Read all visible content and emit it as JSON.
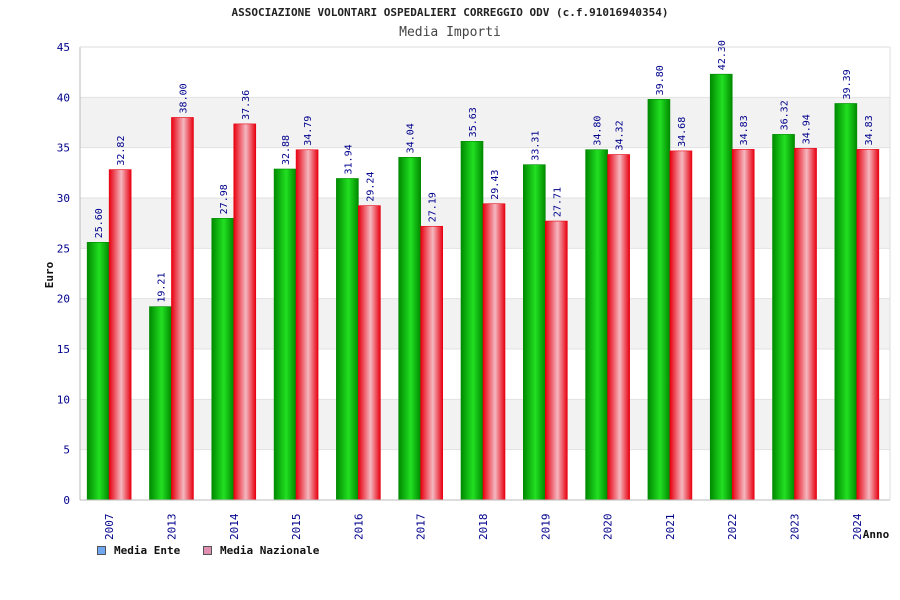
{
  "title": "ASSOCIAZIONE VOLONTARI OSPEDALIERI CORREGGIO ODV (c.f.91016940354)",
  "subtitle": "Media Importi",
  "legend": [
    {
      "label": "Media Ente",
      "color": "#6fa8f0"
    },
    {
      "label": "Media Nazionale",
      "color": "#e08fb0"
    }
  ],
  "colors": {
    "ente_dark": "#008a00",
    "ente_light": "#22e022",
    "naz_dark": "#e80010",
    "naz_light": "#f4b8c0",
    "axis_tick": "#00008b",
    "grid_band": "#f2f2f2"
  },
  "chart_data": {
    "type": "bar",
    "xlabel": "Anno",
    "ylabel": "Euro",
    "ylim": [
      0,
      45
    ],
    "yticks": [
      0,
      5,
      10,
      15,
      20,
      25,
      30,
      35,
      40,
      45
    ],
    "grid": true,
    "legend_position": "bottom-left",
    "categories": [
      "2007",
      "2013",
      "2014",
      "2015",
      "2016",
      "2017",
      "2018",
      "2019",
      "2020",
      "2021",
      "2022",
      "2023",
      "2024"
    ],
    "series": [
      {
        "name": "Media Ente",
        "values": [
          25.6,
          19.21,
          27.98,
          32.88,
          31.94,
          34.04,
          35.63,
          33.31,
          34.8,
          39.8,
          42.3,
          36.32,
          39.39
        ],
        "labels": [
          "25.60",
          "19.21",
          "27.98",
          "32.88",
          "31.94",
          "34.04",
          "35.63",
          "33.31",
          "34.80",
          "39.80",
          "42.30",
          "36.32",
          "39.39"
        ]
      },
      {
        "name": "Media Nazionale",
        "values": [
          32.82,
          38.0,
          37.36,
          34.79,
          29.24,
          27.19,
          29.43,
          27.71,
          34.32,
          34.68,
          34.83,
          34.94,
          34.83
        ],
        "labels": [
          "32.82",
          "38.00",
          "37.36",
          "34.79",
          "29.24",
          "27.19",
          "29.43",
          "27.71",
          "34.32",
          "34.68",
          "34.83",
          "34.94",
          "34.83"
        ]
      }
    ]
  }
}
